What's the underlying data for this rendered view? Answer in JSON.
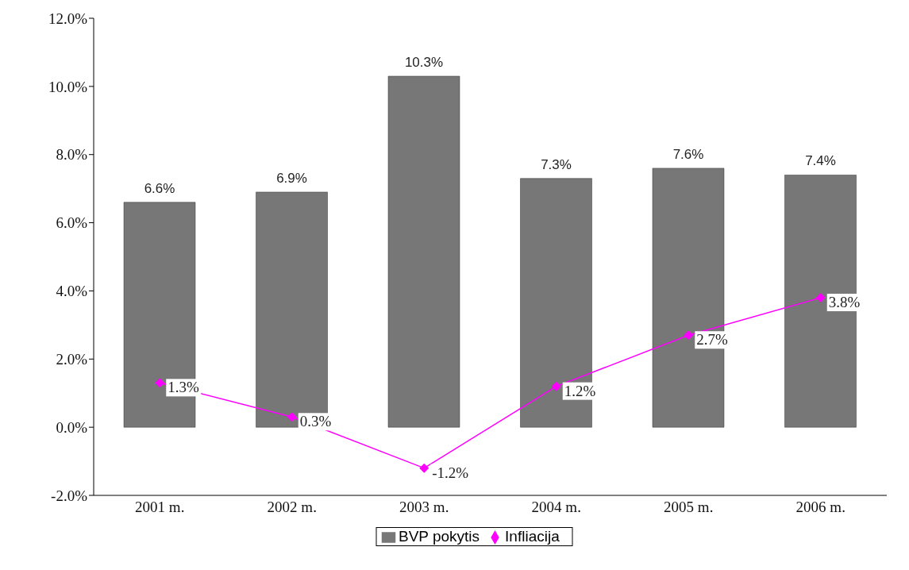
{
  "chart_data": {
    "type": "bar",
    "categories": [
      "2001 m.",
      "2002 m.",
      "2003 m.",
      "2004 m.",
      "2005 m.",
      "2006 m."
    ],
    "series": [
      {
        "name": "BVP pokytis",
        "color": "#777777",
        "values": [
          6.6,
          6.9,
          10.3,
          7.3,
          7.6,
          7.4
        ],
        "value_labels": [
          "6.6%",
          "6.9%",
          "10.3%",
          "7.3%",
          "7.6%",
          "7.4%"
        ]
      },
      {
        "name": "Infliacija",
        "type": "line",
        "color": "#ff00ff",
        "marker": "diamond",
        "values": [
          1.3,
          0.3,
          -1.2,
          1.2,
          2.7,
          3.8
        ],
        "value_labels": [
          "1.3%",
          "0.3%",
          "-1.2%",
          "1.2%",
          "2.7%",
          "3.8%"
        ]
      }
    ],
    "ylim": [
      -2,
      12
    ],
    "yticks": [
      {
        "value": -2,
        "label": "-2.0%"
      },
      {
        "value": 0,
        "label": "0.0%"
      },
      {
        "value": 2,
        "label": "2.0%"
      },
      {
        "value": 4,
        "label": "4.0%"
      },
      {
        "value": 6,
        "label": "6.0%"
      },
      {
        "value": 8,
        "label": "8.0%"
      },
      {
        "value": 10,
        "label": "10.0%"
      },
      {
        "value": 12,
        "label": "12.0%"
      }
    ],
    "grid": false,
    "legend": "bottom"
  }
}
